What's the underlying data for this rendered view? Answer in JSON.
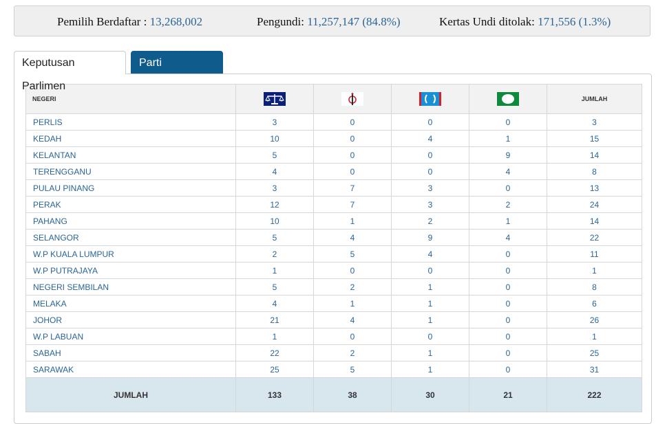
{
  "stats": {
    "registered_label": "Pemilih Berdaftar :",
    "registered_value": "13,268,002",
    "voters_label": "Pengundi:",
    "voters_value": "11,257,147 (84.8%)",
    "rejected_label": "Kertas Undi ditolak:",
    "rejected_value": "171,556 (1.3%)"
  },
  "tabs": [
    {
      "label": "Keputusan Parlimen",
      "active": true
    },
    {
      "label": "Parti Bertanding",
      "active": false
    }
  ],
  "table": {
    "state_header": "NEGERI",
    "total_header": "JUMLAH",
    "party_logos": [
      "bn-scales-logo",
      "dap-rocket-logo",
      "pkr-eye-logo",
      "pas-moon-logo"
    ],
    "colors": {
      "bn": "#0a1f7a",
      "dap": "#d2232a",
      "pkr": "#1a8fd6",
      "pas": "#0f8a3c"
    },
    "rows": [
      {
        "state": "PERLIS",
        "values": [
          "3",
          "0",
          "0",
          "0",
          "3"
        ]
      },
      {
        "state": "KEDAH",
        "values": [
          "10",
          "0",
          "4",
          "1",
          "15"
        ]
      },
      {
        "state": "KELANTAN",
        "values": [
          "5",
          "0",
          "0",
          "9",
          "14"
        ]
      },
      {
        "state": "TERENGGANU",
        "values": [
          "4",
          "0",
          "0",
          "4",
          "8"
        ]
      },
      {
        "state": "PULAU PINANG",
        "values": [
          "3",
          "7",
          "3",
          "0",
          "13"
        ]
      },
      {
        "state": "PERAK",
        "values": [
          "12",
          "7",
          "3",
          "2",
          "24"
        ]
      },
      {
        "state": "PAHANG",
        "values": [
          "10",
          "1",
          "2",
          "1",
          "14"
        ]
      },
      {
        "state": "SELANGOR",
        "values": [
          "5",
          "4",
          "9",
          "4",
          "22"
        ]
      },
      {
        "state": "W.P KUALA LUMPUR",
        "values": [
          "2",
          "5",
          "4",
          "0",
          "11"
        ]
      },
      {
        "state": "W.P PUTRAJAYA",
        "values": [
          "1",
          "0",
          "0",
          "0",
          "1"
        ]
      },
      {
        "state": "NEGERI SEMBILAN",
        "values": [
          "5",
          "2",
          "1",
          "0",
          "8"
        ]
      },
      {
        "state": "MELAKA",
        "values": [
          "4",
          "1",
          "1",
          "0",
          "6"
        ]
      },
      {
        "state": "JOHOR",
        "values": [
          "21",
          "4",
          "1",
          "0",
          "26"
        ]
      },
      {
        "state": "W.P LABUAN",
        "values": [
          "1",
          "0",
          "0",
          "0",
          "1"
        ]
      },
      {
        "state": "SABAH",
        "values": [
          "22",
          "2",
          "1",
          "0",
          "25"
        ]
      },
      {
        "state": "SARAWAK",
        "values": [
          "25",
          "5",
          "1",
          "0",
          "31"
        ]
      }
    ],
    "footer": {
      "label": "JUMLAH",
      "values": [
        "133",
        "38",
        "30",
        "21",
        "222"
      ]
    }
  }
}
